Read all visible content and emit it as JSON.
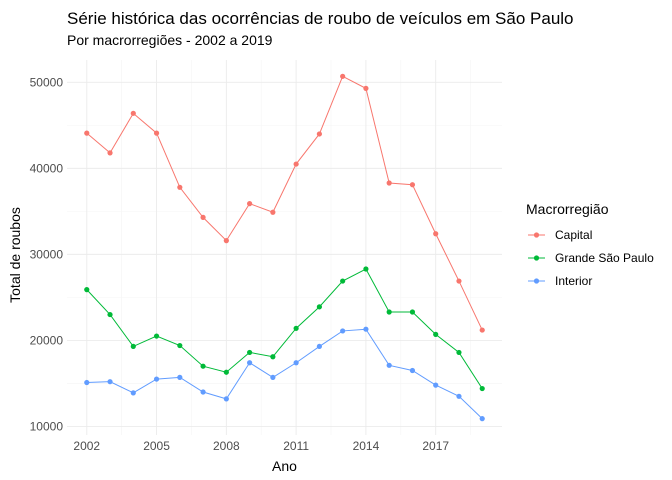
{
  "chart_data": {
    "type": "line",
    "title": "Série histórica das ocorrências de roubo de veículos em São Paulo",
    "subtitle": "Por macrorregiões - 2002 a 2019",
    "xlabel": "Ano",
    "ylabel": "Total de roubos",
    "x": [
      2002,
      2003,
      2004,
      2005,
      2006,
      2007,
      2008,
      2009,
      2010,
      2011,
      2012,
      2013,
      2014,
      2015,
      2016,
      2017,
      2018,
      2019
    ],
    "xticks": [
      2002,
      2005,
      2008,
      2011,
      2014,
      2017
    ],
    "xtick_labels": [
      "2002",
      "2005",
      "2008",
      "2011",
      "2014",
      "2017"
    ],
    "xlim": [
      2001.15,
      2019.85
    ],
    "yticks": [
      10000,
      20000,
      30000,
      40000,
      50000
    ],
    "ytick_labels": [
      "10000",
      "20000",
      "30000",
      "40000",
      "50000"
    ],
    "ylim": [
      9000,
      52600
    ],
    "grid": true,
    "legend": {
      "title": "Macrorregião",
      "position": "right"
    },
    "series": [
      {
        "name": "Capital",
        "color": "#F8766D",
        "values": [
          44100,
          41800,
          46400,
          44100,
          37800,
          34300,
          31600,
          35900,
          34900,
          40500,
          44000,
          50700,
          49300,
          38300,
          38100,
          32400,
          26900,
          21200
        ]
      },
      {
        "name": "Grande São Paulo",
        "color": "#00BA38",
        "values": [
          25900,
          23000,
          19300,
          20500,
          19400,
          17000,
          16300,
          18600,
          18100,
          21400,
          23900,
          26900,
          28300,
          23300,
          23300,
          20700,
          18600,
          14400
        ]
      },
      {
        "name": "Interior",
        "color": "#619CFF",
        "values": [
          15100,
          15200,
          13900,
          15500,
          15700,
          14000,
          13200,
          17400,
          15700,
          17400,
          19300,
          21100,
          21300,
          17100,
          16500,
          14800,
          13500,
          10900
        ]
      }
    ]
  }
}
